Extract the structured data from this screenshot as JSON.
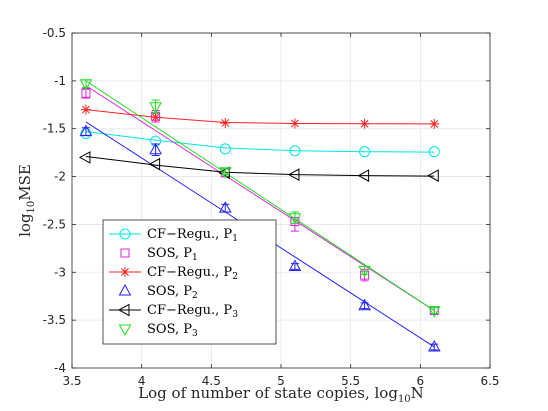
{
  "chart_data": {
    "type": "scatter",
    "xlabel": "Log of number of state copies, log",
    "xlabel_sub": "10",
    "xlabel_tail": "N",
    "ylabel": "log",
    "ylabel_sub": "10",
    "ylabel_tail": "MSE",
    "xlim": [
      3.5,
      6.5
    ],
    "ylim": [
      -4,
      -0.5
    ],
    "xticks": [
      3.5,
      4,
      4.5,
      5,
      5.5,
      6,
      6.5
    ],
    "xtick_labels": [
      "3.5",
      "4",
      "4.5",
      "5",
      "5.5",
      "6",
      "6.5"
    ],
    "yticks": [
      -4,
      -3.5,
      -3,
      -2.5,
      -2,
      -1.5,
      -1,
      -0.5
    ],
    "ytick_labels": [
      "-4",
      "-3.5",
      "-3",
      "-2.5",
      "-2",
      "-1.5",
      "-1",
      "-0.5"
    ],
    "grid": true,
    "legend_position": "bottom-left",
    "x": [
      3.6,
      4.1,
      4.6,
      5.1,
      5.6,
      6.1
    ],
    "series": [
      {
        "name": "CF−Regu., P",
        "name_sub": "1",
        "color": "#00e5e5",
        "marker": "circle",
        "points": [
          -1.55,
          -1.63,
          -1.71,
          -1.73,
          -1.74,
          -1.74
        ],
        "fit_line": [
          -1.53,
          -1.62,
          -1.7,
          -1.73,
          -1.74,
          -1.745
        ],
        "error": [
          0,
          0,
          0,
          0,
          0,
          0
        ]
      },
      {
        "name": "SOS, P",
        "name_sub": "1",
        "color": "#e020e0",
        "marker": "square",
        "points": [
          -1.13,
          -1.37,
          -1.96,
          -2.47,
          -3.03,
          -3.4
        ],
        "fit_line": [
          -1.05,
          -1.52,
          -1.99,
          -2.46,
          -2.93,
          -3.4
        ],
        "error": [
          0.05,
          0.06,
          0.04,
          0.1,
          0.06,
          0.04
        ]
      },
      {
        "name": "CF−Regu., P",
        "name_sub": "2",
        "color": "#ff2020",
        "marker": "asterisk",
        "points": [
          -1.3,
          -1.38,
          -1.44,
          -1.445,
          -1.448,
          -1.45
        ],
        "fit_line": [
          -1.3,
          -1.38,
          -1.435,
          -1.445,
          -1.448,
          -1.45
        ],
        "error": [
          0,
          0,
          0,
          0,
          0,
          0
        ]
      },
      {
        "name": "SOS, P",
        "name_sub": "2",
        "color": "#2020ff",
        "marker": "triangle-up",
        "points": [
          -1.53,
          -1.72,
          -2.33,
          -2.94,
          -3.35,
          -3.78
        ],
        "fit_line": [
          -1.43,
          -1.9,
          -2.37,
          -2.84,
          -3.31,
          -3.78
        ],
        "error": [
          0.04,
          0.06,
          0.04,
          0.03,
          0.03,
          0.03
        ]
      },
      {
        "name": "CF−Regu., P",
        "name_sub": "3",
        "color": "#000000",
        "marker": "triangle-left",
        "points": [
          -1.8,
          -1.87,
          -1.96,
          -1.98,
          -1.99,
          -1.99
        ],
        "fit_line": [
          -1.79,
          -1.88,
          -1.955,
          -1.98,
          -1.99,
          -1.995
        ],
        "error": [
          0,
          0,
          0,
          0,
          0,
          0
        ]
      },
      {
        "name": "SOS, P",
        "name_sub": "3",
        "color": "#20e020",
        "marker": "triangle-down",
        "points": [
          -1.03,
          -1.27,
          -1.95,
          -2.43,
          -2.98,
          -3.4
        ],
        "fit_line": [
          -1.0,
          -1.48,
          -1.96,
          -2.44,
          -2.92,
          -3.4
        ],
        "error": [
          0.04,
          0.07,
          0.03,
          0.06,
          0.04,
          0.03
        ]
      }
    ]
  }
}
